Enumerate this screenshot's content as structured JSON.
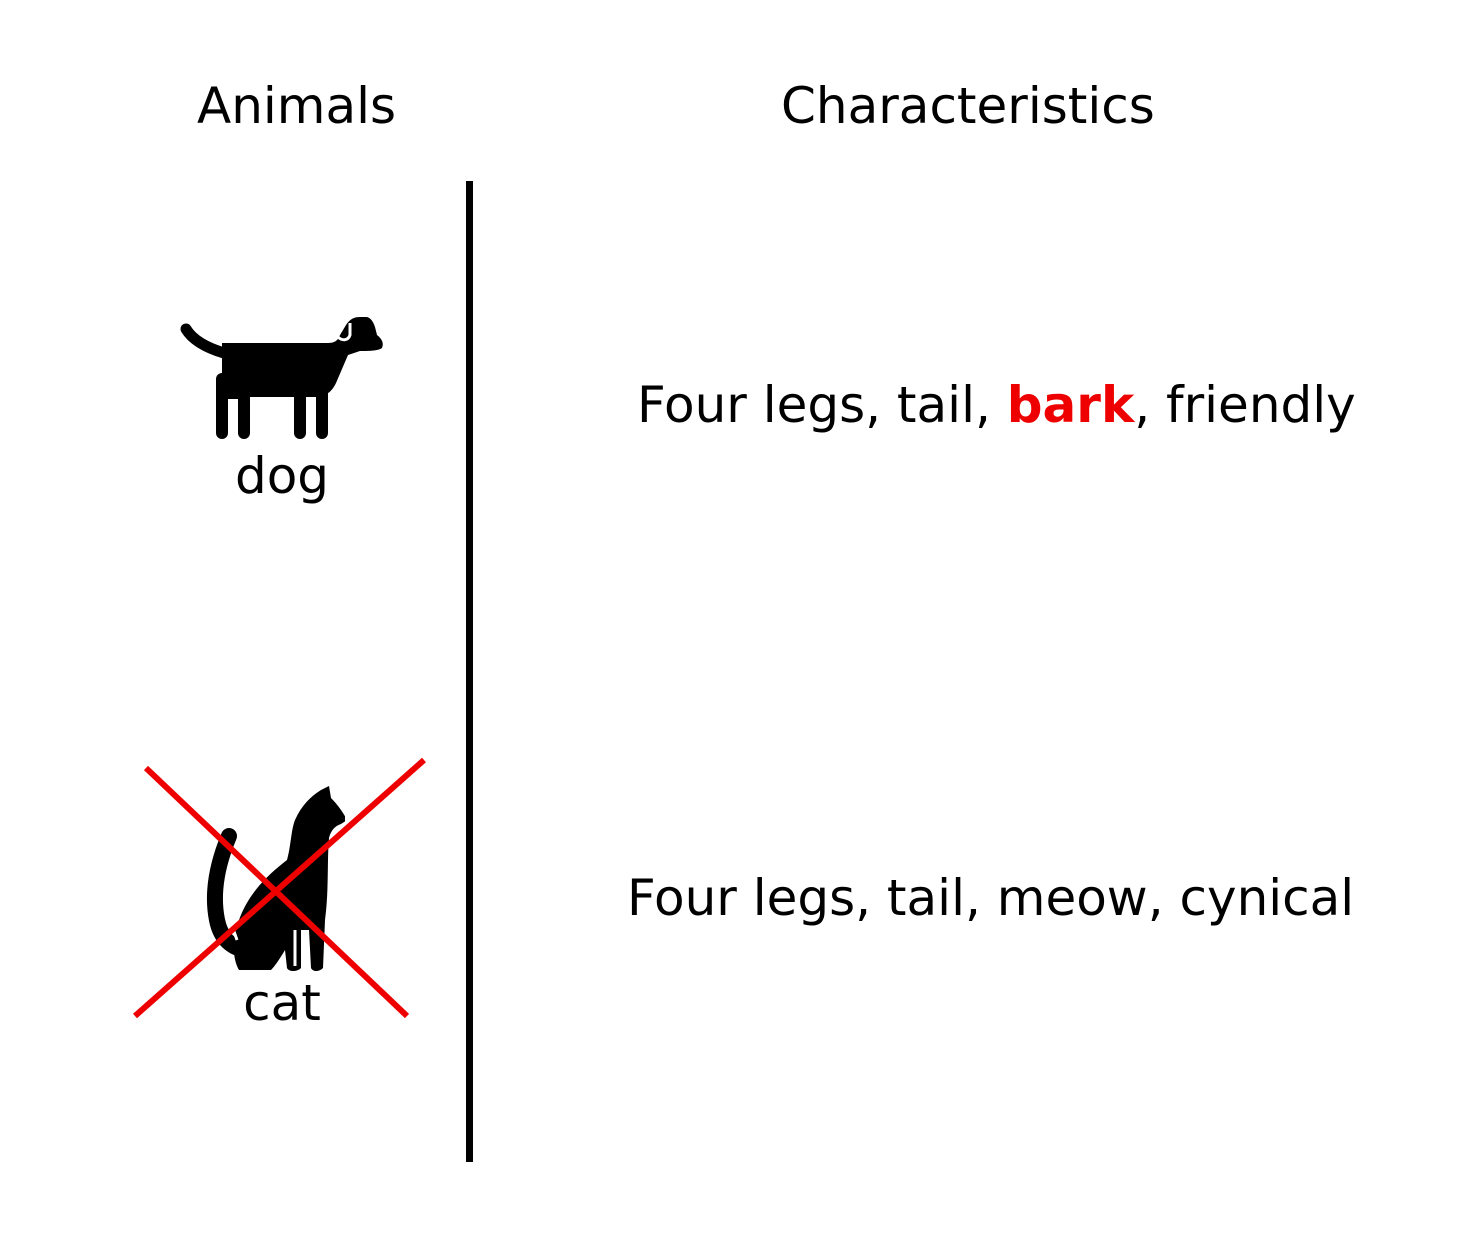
{
  "headers": {
    "animals": "Animals",
    "characteristics": "Characteristics"
  },
  "animals": [
    {
      "label": "dog",
      "icon": "dog-icon",
      "crossed_out": false,
      "traits": {
        "before": "Four legs, tail, ",
        "highlight": "bark",
        "after": ", friendly"
      }
    },
    {
      "label": "cat",
      "icon": "cat-icon",
      "crossed_out": true,
      "traits": {
        "text": "Four legs, tail, meow, cynical"
      }
    }
  ],
  "colors": {
    "highlight": "#ee0000",
    "cross": "#ee0000",
    "icon": "#000000",
    "divider": "#000000"
  }
}
